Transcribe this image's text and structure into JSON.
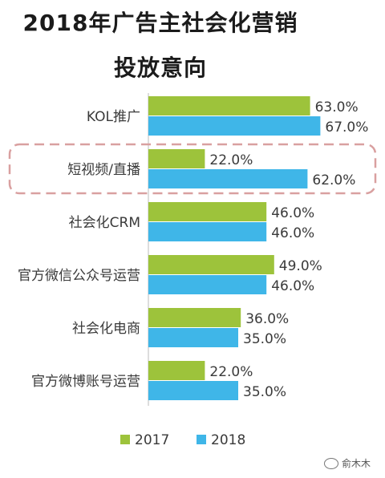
{
  "title_line1": "2018年广告主社会化营销",
  "title_line2": "投放意向",
  "watermark": "俞木木",
  "colors": {
    "y2017": "#9dc33b",
    "y2018": "#3fb6e8",
    "highlight": "#d9a0a0",
    "text": "#3a3a3a"
  },
  "chart_data": {
    "type": "bar",
    "orientation": "horizontal",
    "title": "2018年广告主社会化营销投放意向",
    "categories": [
      "KOL推广",
      "短视频/直播",
      "社会化CRM",
      "官方微信公众号运营",
      "社会化电商",
      "官方微博账号运营"
    ],
    "series": [
      {
        "name": "2017",
        "values": [
          63.0,
          22.0,
          46.0,
          49.0,
          36.0,
          22.0
        ],
        "labels": [
          "63.0%",
          "22.0%",
          "46.0%",
          "49.0%",
          "36.0%",
          "22.0%"
        ]
      },
      {
        "name": "2018",
        "values": [
          67.0,
          62.0,
          46.0,
          46.0,
          35.0,
          35.0
        ],
        "labels": [
          "67.0%",
          "62.0%",
          "46.0%",
          "46.0%",
          "35.0%",
          "35.0%"
        ]
      }
    ],
    "xlim": [
      0,
      100
    ],
    "grid": false,
    "legend": "bottom",
    "highlighted_category": "短视频/直播"
  }
}
